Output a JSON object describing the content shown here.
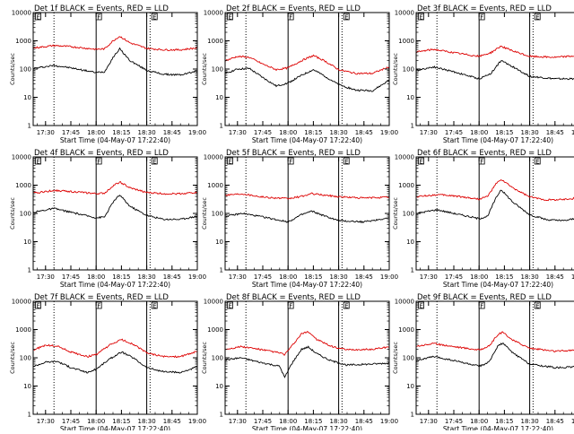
{
  "colors": {
    "events": "#000000",
    "lld": "#dd0000",
    "axis": "#000000"
  },
  "shared": {
    "type": "line",
    "y_scale": "log",
    "ylim": [
      1,
      10000
    ],
    "y_ticks": [
      1,
      10,
      100,
      1000,
      10000
    ],
    "y_tick_labels": [
      "1",
      "10",
      "100",
      "1000",
      "10000"
    ],
    "ylabel": "Counts/sec",
    "xlabel": "Start Time (04-May-07 17:22:40)",
    "xlim": [
      "17:22:40",
      "19:00"
    ],
    "x_ticks": [
      "17:30",
      "17:45",
      "18:00",
      "18:15",
      "18:30",
      "18:45",
      "19:00"
    ],
    "solid_vlines": [
      "18:00",
      "18:30"
    ],
    "dotted_vlines": [
      "17:35",
      "18:32"
    ],
    "markers": [
      {
        "label": "E",
        "time": "17:24"
      },
      {
        "label": "F",
        "time": "18:00"
      },
      {
        "label": "E",
        "time": "18:33"
      }
    ]
  },
  "chart_data": [
    {
      "title": "Det 1f BLACK = Events, RED = LLD",
      "type": "line",
      "series": [
        {
          "name": "Events",
          "color": "#000000",
          "points": [
            [
              "17:23",
              105
            ],
            [
              "17:35",
              135
            ],
            [
              "17:45",
              110
            ],
            [
              "18:00",
              75
            ],
            [
              "18:05",
              80
            ],
            [
              "18:10",
              260
            ],
            [
              "18:14",
              520
            ],
            [
              "18:20",
              200
            ],
            [
              "18:30",
              90
            ],
            [
              "18:40",
              65
            ],
            [
              "18:50",
              62
            ],
            [
              "19:00",
              85
            ]
          ]
        },
        {
          "name": "LLD",
          "color": "#dd0000",
          "points": [
            [
              "17:23",
              560
            ],
            [
              "17:35",
              680
            ],
            [
              "17:45",
              620
            ],
            [
              "18:00",
              500
            ],
            [
              "18:05",
              520
            ],
            [
              "18:10",
              1000
            ],
            [
              "18:14",
              1450
            ],
            [
              "18:20",
              850
            ],
            [
              "18:30",
              540
            ],
            [
              "18:40",
              480
            ],
            [
              "18:50",
              480
            ],
            [
              "19:00",
              560
            ]
          ]
        }
      ]
    },
    {
      "title": "Det 2f BLACK = Events, RED = LLD",
      "type": "line",
      "series": [
        {
          "name": "Events",
          "color": "#000000",
          "points": [
            [
              "17:23",
              70
            ],
            [
              "17:30",
              100
            ],
            [
              "17:37",
              105
            ],
            [
              "17:45",
              50
            ],
            [
              "17:53",
              25
            ],
            [
              "18:00",
              32
            ],
            [
              "18:08",
              60
            ],
            [
              "18:15",
              95
            ],
            [
              "18:22",
              55
            ],
            [
              "18:30",
              28
            ],
            [
              "18:40",
              18
            ],
            [
              "18:50",
              17
            ],
            [
              "19:00",
              40
            ]
          ]
        },
        {
          "name": "LLD",
          "color": "#dd0000",
          "points": [
            [
              "17:23",
              200
            ],
            [
              "17:30",
              280
            ],
            [
              "17:37",
              260
            ],
            [
              "17:45",
              150
            ],
            [
              "17:53",
              95
            ],
            [
              "18:00",
              110
            ],
            [
              "18:08",
              200
            ],
            [
              "18:15",
              300
            ],
            [
              "18:22",
              190
            ],
            [
              "18:30",
              95
            ],
            [
              "18:40",
              70
            ],
            [
              "18:50",
              70
            ],
            [
              "19:00",
              120
            ]
          ]
        }
      ]
    },
    {
      "title": "Det 3f BLACK = Events, RED = LLD",
      "type": "line",
      "series": [
        {
          "name": "Events",
          "color": "#000000",
          "points": [
            [
              "17:23",
              90
            ],
            [
              "17:33",
              120
            ],
            [
              "17:45",
              80
            ],
            [
              "18:00",
              45
            ],
            [
              "18:07",
              70
            ],
            [
              "18:13",
              200
            ],
            [
              "18:20",
              120
            ],
            [
              "18:30",
              55
            ],
            [
              "18:45",
              45
            ],
            [
              "19:00",
              45
            ]
          ]
        },
        {
          "name": "LLD",
          "color": "#dd0000",
          "points": [
            [
              "17:23",
              400
            ],
            [
              "17:33",
              500
            ],
            [
              "17:45",
              380
            ],
            [
              "18:00",
              280
            ],
            [
              "18:07",
              380
            ],
            [
              "18:13",
              650
            ],
            [
              "18:20",
              430
            ],
            [
              "18:30",
              280
            ],
            [
              "18:45",
              260
            ],
            [
              "19:00",
              300
            ]
          ]
        }
      ]
    },
    {
      "title": "Det 4f BLACK = Events, RED = LLD",
      "type": "line",
      "series": [
        {
          "name": "Events",
          "color": "#000000",
          "points": [
            [
              "17:23",
              110
            ],
            [
              "17:35",
              150
            ],
            [
              "17:45",
              110
            ],
            [
              "18:00",
              70
            ],
            [
              "18:05",
              75
            ],
            [
              "18:10",
              250
            ],
            [
              "18:14",
              450
            ],
            [
              "18:20",
              180
            ],
            [
              "18:30",
              85
            ],
            [
              "18:40",
              62
            ],
            [
              "18:50",
              62
            ],
            [
              "19:00",
              80
            ]
          ]
        },
        {
          "name": "LLD",
          "color": "#dd0000",
          "points": [
            [
              "17:23",
              520
            ],
            [
              "17:35",
              650
            ],
            [
              "17:45",
              600
            ],
            [
              "18:00",
              500
            ],
            [
              "18:05",
              520
            ],
            [
              "18:10",
              950
            ],
            [
              "18:14",
              1300
            ],
            [
              "18:20",
              800
            ],
            [
              "18:30",
              550
            ],
            [
              "18:40",
              500
            ],
            [
              "18:50",
              500
            ],
            [
              "19:00",
              560
            ]
          ]
        }
      ]
    },
    {
      "title": "Det 5f BLACK = Events, RED = LLD",
      "type": "line",
      "series": [
        {
          "name": "Events",
          "color": "#000000",
          "points": [
            [
              "17:23",
              80
            ],
            [
              "17:33",
              100
            ],
            [
              "17:45",
              75
            ],
            [
              "18:00",
              50
            ],
            [
              "18:08",
              90
            ],
            [
              "18:14",
              120
            ],
            [
              "18:22",
              80
            ],
            [
              "18:30",
              55
            ],
            [
              "18:45",
              50
            ],
            [
              "19:00",
              70
            ]
          ]
        },
        {
          "name": "LLD",
          "color": "#dd0000",
          "points": [
            [
              "17:23",
              450
            ],
            [
              "17:33",
              500
            ],
            [
              "17:45",
              380
            ],
            [
              "18:00",
              330
            ],
            [
              "18:08",
              400
            ],
            [
              "18:14",
              500
            ],
            [
              "18:22",
              440
            ],
            [
              "18:30",
              390
            ],
            [
              "18:45",
              350
            ],
            [
              "19:00",
              380
            ]
          ]
        }
      ]
    },
    {
      "title": "Det 6f BLACK = Events, RED = LLD",
      "type": "line",
      "series": [
        {
          "name": "Events",
          "color": "#000000",
          "points": [
            [
              "17:23",
              100
            ],
            [
              "17:35",
              135
            ],
            [
              "17:45",
              100
            ],
            [
              "18:00",
              65
            ],
            [
              "18:05",
              80
            ],
            [
              "18:10",
              350
            ],
            [
              "18:13",
              700
            ],
            [
              "18:20",
              250
            ],
            [
              "18:30",
              90
            ],
            [
              "18:40",
              60
            ],
            [
              "18:50",
              55
            ],
            [
              "19:00",
              70
            ]
          ]
        },
        {
          "name": "LLD",
          "color": "#dd0000",
          "points": [
            [
              "17:23",
              390
            ],
            [
              "17:35",
              460
            ],
            [
              "17:45",
              420
            ],
            [
              "18:00",
              320
            ],
            [
              "18:05",
              400
            ],
            [
              "18:10",
              1100
            ],
            [
              "18:13",
              1600
            ],
            [
              "18:20",
              800
            ],
            [
              "18:30",
              380
            ],
            [
              "18:40",
              300
            ],
            [
              "18:50",
              310
            ],
            [
              "19:00",
              360
            ]
          ]
        }
      ]
    },
    {
      "title": "Det 7f BLACK = Events, RED = LLD",
      "type": "line",
      "series": [
        {
          "name": "Events",
          "color": "#000000",
          "points": [
            [
              "17:23",
              50
            ],
            [
              "17:30",
              70
            ],
            [
              "17:37",
              75
            ],
            [
              "17:45",
              45
            ],
            [
              "17:55",
              30
            ],
            [
              "18:00",
              40
            ],
            [
              "18:08",
              90
            ],
            [
              "18:15",
              160
            ],
            [
              "18:22",
              100
            ],
            [
              "18:30",
              45
            ],
            [
              "18:40",
              32
            ],
            [
              "18:50",
              30
            ],
            [
              "19:00",
              48
            ]
          ]
        },
        {
          "name": "LLD",
          "color": "#dd0000",
          "points": [
            [
              "17:23",
              190
            ],
            [
              "17:30",
              280
            ],
            [
              "17:37",
              260
            ],
            [
              "17:45",
              160
            ],
            [
              "17:55",
              110
            ],
            [
              "18:00",
              130
            ],
            [
              "18:08",
              280
            ],
            [
              "18:15",
              440
            ],
            [
              "18:22",
              300
            ],
            [
              "18:30",
              150
            ],
            [
              "18:40",
              110
            ],
            [
              "18:50",
              110
            ],
            [
              "19:00",
              170
            ]
          ]
        }
      ]
    },
    {
      "title": "Det 8f BLACK = Events, RED = LLD",
      "type": "line",
      "series": [
        {
          "name": "Events",
          "color": "#000000",
          "points": [
            [
              "17:23",
              85
            ],
            [
              "17:32",
              100
            ],
            [
              "17:43",
              70
            ],
            [
              "17:55",
              50
            ],
            [
              "17:58",
              20
            ],
            [
              "18:02",
              60
            ],
            [
              "18:08",
              200
            ],
            [
              "18:12",
              240
            ],
            [
              "18:17",
              140
            ],
            [
              "18:25",
              80
            ],
            [
              "18:35",
              55
            ],
            [
              "18:50",
              60
            ],
            [
              "19:00",
              65
            ]
          ]
        },
        {
          "name": "LLD",
          "color": "#dd0000",
          "points": [
            [
              "17:23",
              200
            ],
            [
              "17:32",
              250
            ],
            [
              "17:43",
              200
            ],
            [
              "17:55",
              150
            ],
            [
              "17:58",
              130
            ],
            [
              "18:02",
              250
            ],
            [
              "18:08",
              700
            ],
            [
              "18:12",
              850
            ],
            [
              "18:17",
              450
            ],
            [
              "18:25",
              260
            ],
            [
              "18:35",
              190
            ],
            [
              "18:50",
              200
            ],
            [
              "19:00",
              240
            ]
          ]
        }
      ]
    },
    {
      "title": "Det 9f BLACK = Events, RED = LLD",
      "type": "line",
      "series": [
        {
          "name": "Events",
          "color": "#000000",
          "points": [
            [
              "17:23",
              80
            ],
            [
              "17:33",
              110
            ],
            [
              "17:45",
              80
            ],
            [
              "18:00",
              50
            ],
            [
              "18:06",
              70
            ],
            [
              "18:11",
              260
            ],
            [
              "18:14",
              330
            ],
            [
              "18:20",
              150
            ],
            [
              "18:30",
              60
            ],
            [
              "18:45",
              45
            ],
            [
              "19:00",
              48
            ]
          ]
        },
        {
          "name": "LLD",
          "color": "#dd0000",
          "points": [
            [
              "17:23",
              260
            ],
            [
              "17:33",
              320
            ],
            [
              "17:45",
              250
            ],
            [
              "18:00",
              190
            ],
            [
              "18:06",
              260
            ],
            [
              "18:11",
              650
            ],
            [
              "18:14",
              800
            ],
            [
              "18:20",
              420
            ],
            [
              "18:30",
              220
            ],
            [
              "18:45",
              170
            ],
            [
              "19:00",
              190
            ]
          ]
        }
      ]
    }
  ]
}
